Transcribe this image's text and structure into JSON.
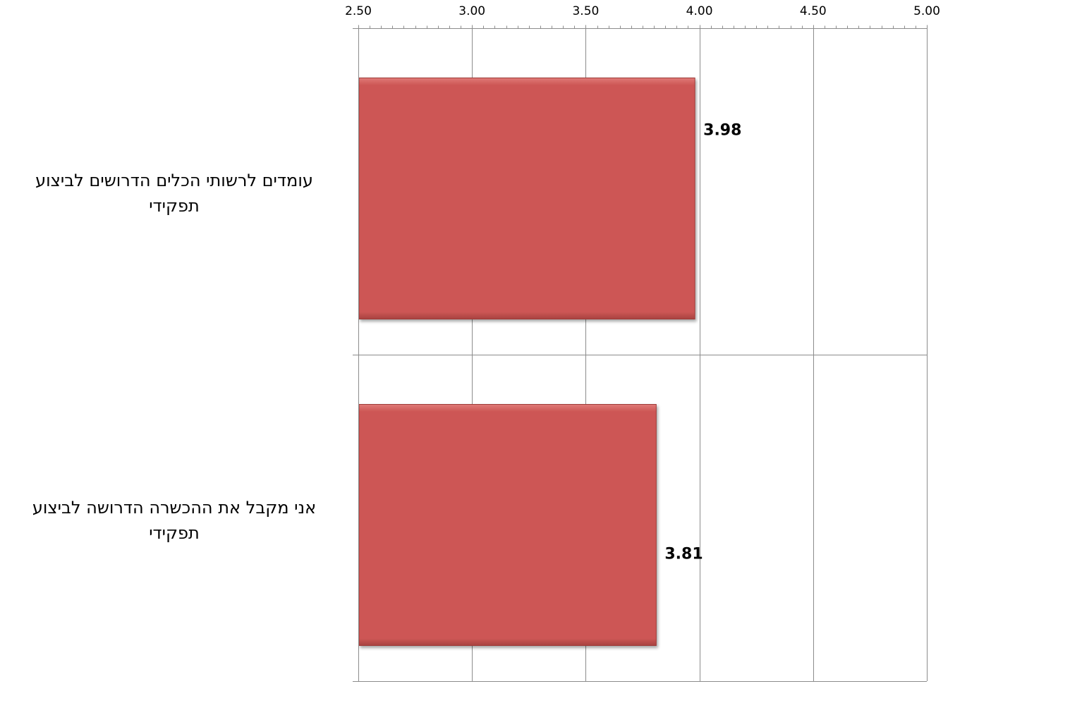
{
  "chart_data": {
    "type": "bar",
    "orientation": "horizontal",
    "categories": [
      "עומדים לרשותי הכלים הדרושים לביצוע תפקידי",
      "אני מקבל את ההכשרה הדרושה לביצוע תפקידי"
    ],
    "values": [
      3.98,
      3.81
    ],
    "data_labels": [
      "3.98",
      "3.81"
    ],
    "xlim": [
      2.5,
      5.0
    ],
    "ticks": [
      "2.50",
      "3.00",
      "3.50",
      "4.00",
      "4.50",
      "5.00"
    ],
    "axis_position": "top",
    "grid": true,
    "bar_color": "#cd5755",
    "title": "",
    "xlabel": "",
    "ylabel": ""
  }
}
